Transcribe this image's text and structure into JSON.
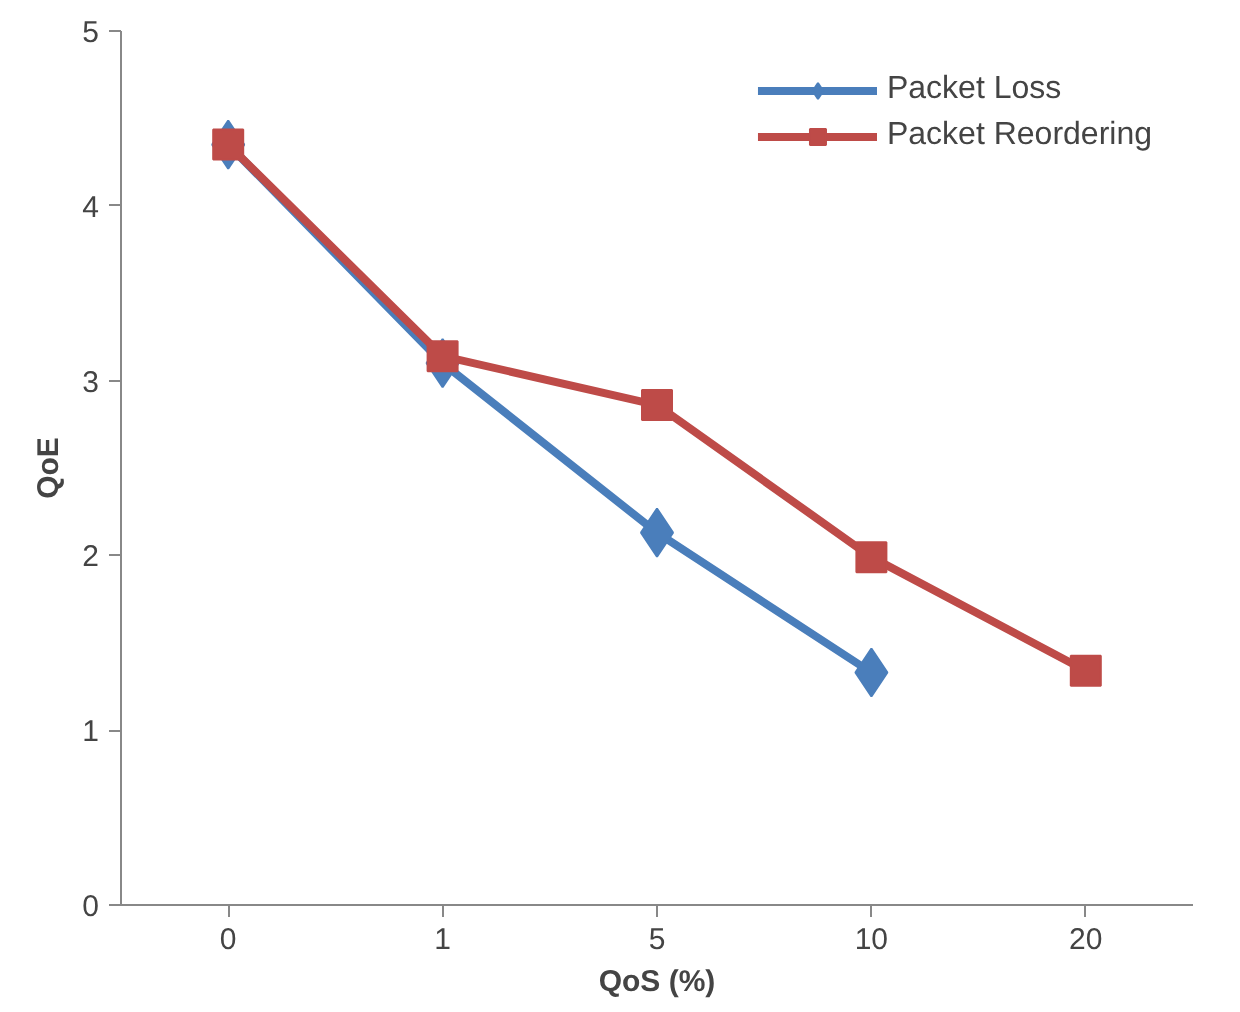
{
  "chart_data": {
    "type": "line",
    "xlabel": "QoS (%)",
    "ylabel": "QoE",
    "categories": [
      "0",
      "1",
      "5",
      "10",
      "20"
    ],
    "ylim": [
      0,
      5
    ],
    "yticks": [
      0,
      1,
      2,
      3,
      4,
      5
    ],
    "grid": false,
    "legend": "top right",
    "series": [
      {
        "name": "Packet Loss",
        "color": "#4a7ebb",
        "marker": "diamond",
        "values": [
          4.35,
          3.1,
          2.13,
          1.33,
          null
        ]
      },
      {
        "name": "Packet Reordering",
        "color": "#be4b48",
        "marker": "square",
        "values": [
          4.35,
          3.14,
          2.86,
          1.99,
          1.34
        ]
      }
    ]
  }
}
